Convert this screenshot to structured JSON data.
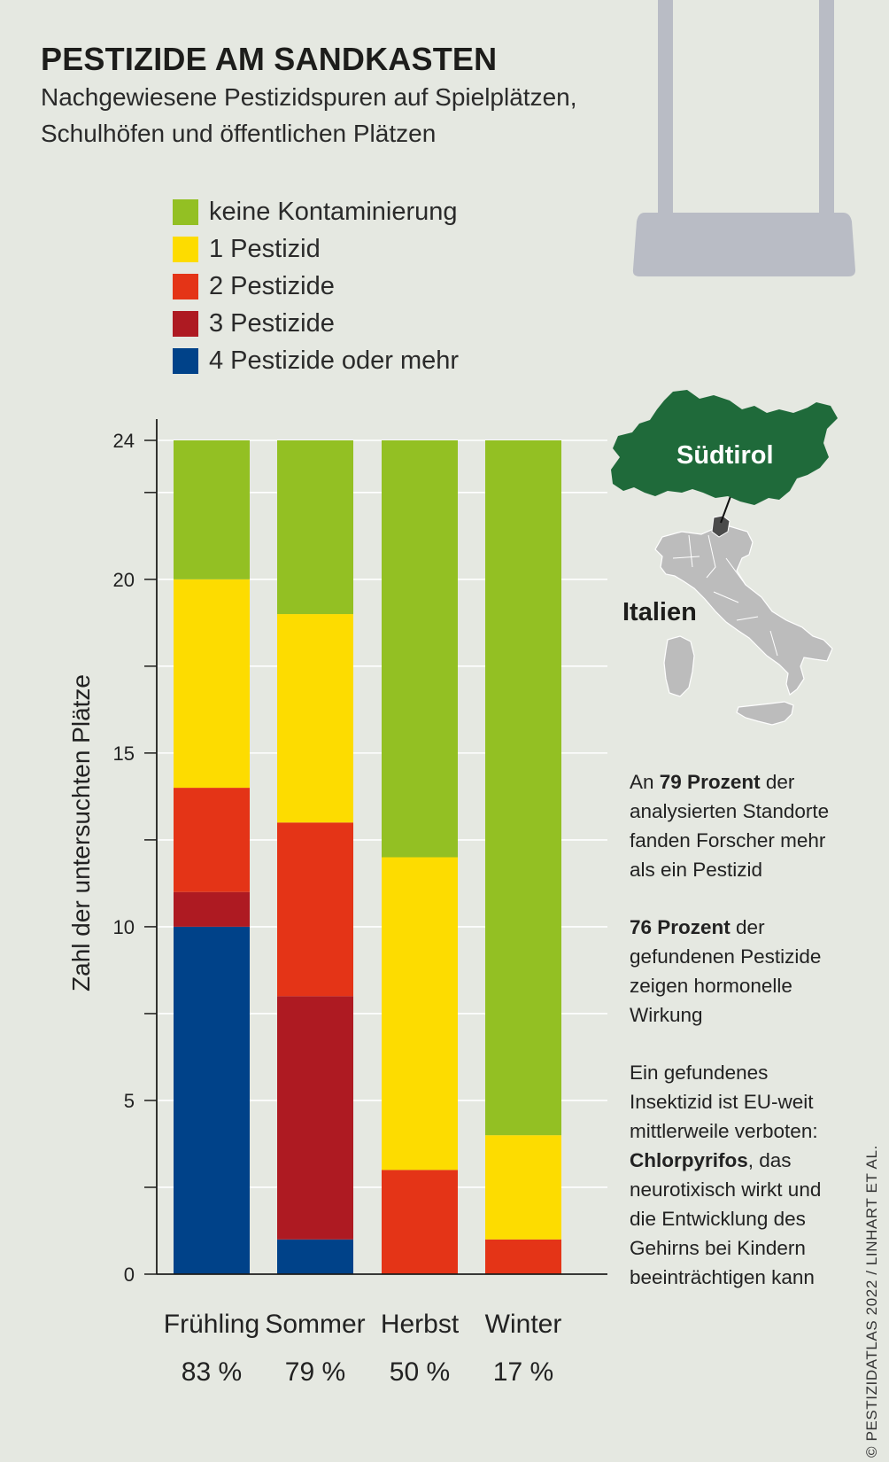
{
  "header": {
    "title": "PESTIZIDE AM SANDKASTEN",
    "subtitle_line1": "Nachgewiesene Pestizidspuren auf Spielplätzen,",
    "subtitle_line2": "Schulhöfen und öffentlichen Plätzen"
  },
  "colors": {
    "keine": "#93c023",
    "p1": "#fddc00",
    "p2": "#e43417",
    "p3": "#ae1a22",
    "p4": "#004289",
    "background": "#e5e8e1",
    "map_dark": "#1f6a3a",
    "map_gray": "#bcbcbc"
  },
  "chart_data": {
    "type": "bar",
    "stacked": true,
    "categories": [
      "Frühling",
      "Sommer",
      "Herbst",
      "Winter"
    ],
    "category_percentages": [
      "83 %",
      "79 %",
      "50 %",
      "17 %"
    ],
    "ylabel": "Zahl der untersuchten Plätze",
    "ylim": [
      0,
      24
    ],
    "yticks": [
      0,
      5,
      10,
      15,
      20,
      24
    ],
    "grid": true,
    "legend_position": "top-left",
    "series": [
      {
        "name": "4 Pestizide oder mehr",
        "color": "#004289",
        "values": [
          10,
          1,
          0,
          0
        ]
      },
      {
        "name": "3 Pestizide",
        "color": "#ae1a22",
        "values": [
          1,
          7,
          0,
          0
        ]
      },
      {
        "name": "2 Pestizide",
        "color": "#e43417",
        "values": [
          3,
          5,
          3,
          1
        ]
      },
      {
        "name": "1 Pestizid",
        "color": "#fddc00",
        "values": [
          6,
          6,
          9,
          3
        ]
      },
      {
        "name": "keine Kontaminierung",
        "color": "#93c023",
        "values": [
          4,
          5,
          12,
          20
        ]
      }
    ]
  },
  "legend": {
    "items": [
      {
        "label": "keine Kontaminierung",
        "color": "#93c023"
      },
      {
        "label": "1 Pestizid",
        "color": "#fddc00"
      },
      {
        "label": "2 Pestizide",
        "color": "#e43417"
      },
      {
        "label": "3 Pestizide",
        "color": "#ae1a22"
      },
      {
        "label": "4 Pestizide oder mehr",
        "color": "#004289"
      }
    ]
  },
  "map": {
    "region_label": "Südtirol",
    "country_label": "Italien"
  },
  "notes": {
    "n1_pre": "An ",
    "n1_bold": "79 Prozent",
    "n1_post": " der analysierten Standorte fanden Forscher mehr als ein Pestizid",
    "n2_bold": "76 Prozent",
    "n2_post": " der gefundenen Pestizide zeigen hormonelle Wirkung",
    "n3_pre": "Ein gefundenes Insektizid ist EU-weit mittlerweile verboten: ",
    "n3_bold": "Chlorpyrifos",
    "n3_post": ", das neurotixisch wirkt und die Entwicklung des Gehirns bei Kindern beeinträchtigen kann"
  },
  "credit": "© PESTIZIDATLAS 2022 / LINHART ET AL."
}
